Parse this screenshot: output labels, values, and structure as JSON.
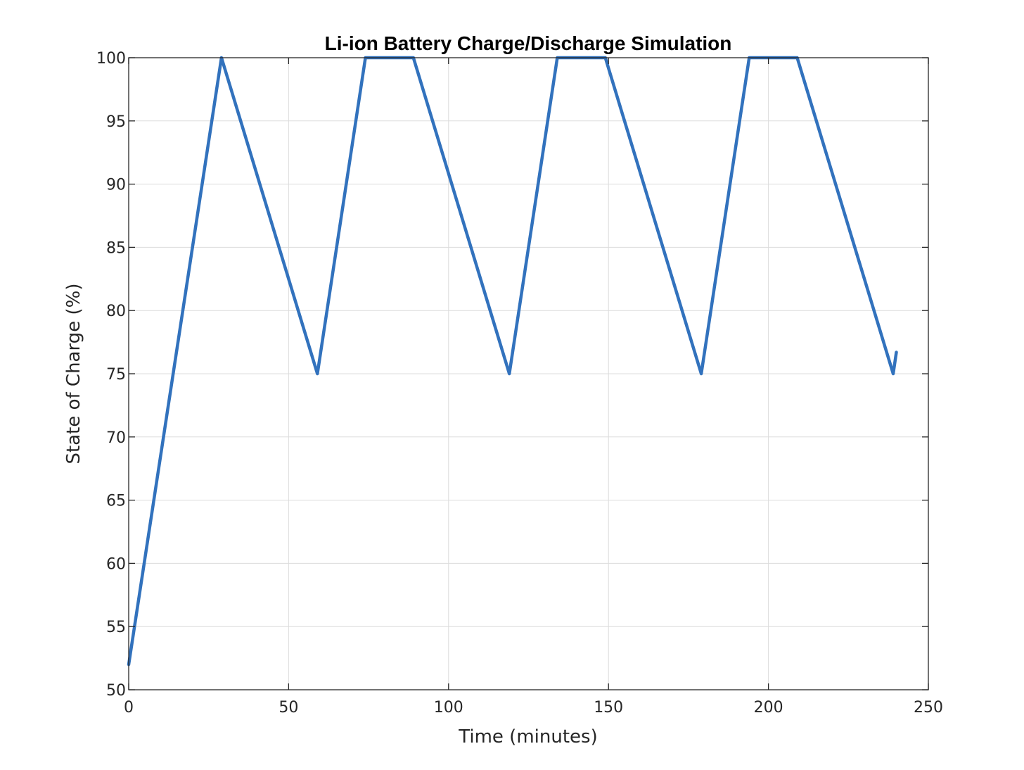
{
  "chart_data": {
    "type": "line",
    "title": "Li-ion Battery Charge/Discharge Simulation",
    "xlabel": "Time (minutes)",
    "ylabel": "State of Charge (%)",
    "xlim": [
      0,
      250
    ],
    "ylim": [
      50,
      100
    ],
    "xticks": [
      0,
      50,
      100,
      150,
      200,
      250
    ],
    "yticks": [
      50,
      55,
      60,
      65,
      70,
      75,
      80,
      85,
      90,
      95,
      100
    ],
    "grid": true,
    "series": [
      {
        "color": "#3272BD",
        "x": [
          0,
          29,
          59,
          74,
          89,
          119,
          134,
          149,
          179,
          194,
          209,
          239,
          240
        ],
        "y": [
          52,
          100,
          75,
          100,
          100,
          75,
          100,
          100,
          75,
          100,
          100,
          75,
          76.7
        ]
      }
    ]
  }
}
